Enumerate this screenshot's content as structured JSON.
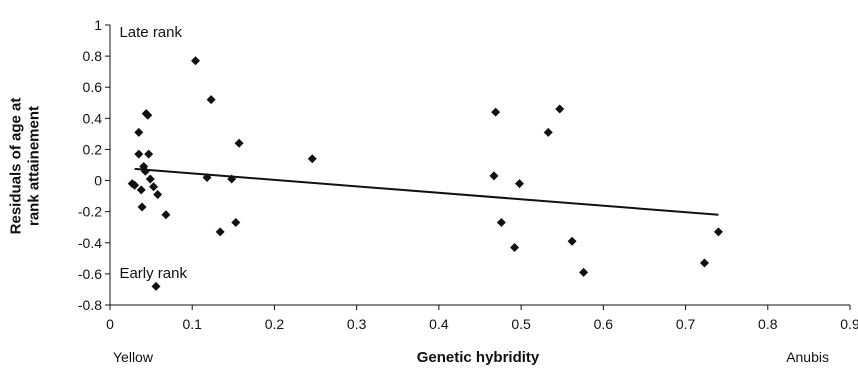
{
  "chart_data": {
    "type": "scatter",
    "title": "",
    "xlabel": "Genetic hybridity",
    "ylabel": "Residuals of age at rank attainement",
    "xlim": [
      0,
      0.9
    ],
    "ylim": [
      -0.8,
      1.0
    ],
    "x_ticks": [
      "0",
      "0.1",
      "0.2",
      "0.3",
      "0.4",
      "0.5",
      "0.6",
      "0.7",
      "0.8",
      "0.9"
    ],
    "y_ticks": [
      "-0.8",
      "-0.6",
      "-0.4",
      "-0.2",
      "0",
      "0.2",
      "0.4",
      "0.6",
      "0.8",
      "1"
    ],
    "x_end_labels": {
      "left": "Yellow",
      "right": "Anubis"
    },
    "annotations": [
      {
        "text": "Late rank",
        "x": 0.003,
        "y": 0.95
      },
      {
        "text": "Early rank",
        "x": 0.003,
        "y": -0.6
      }
    ],
    "grid": false,
    "legend": "none",
    "marker": "diamond",
    "marker_color": "#111111",
    "line_color": "#111111",
    "trendline": {
      "x": [
        0.03,
        0.74
      ],
      "y": [
        0.075,
        -0.22
      ]
    },
    "points": [
      {
        "x": 0.027,
        "y": -0.02
      },
      {
        "x": 0.03,
        "y": -0.03
      },
      {
        "x": 0.035,
        "y": 0.31
      },
      {
        "x": 0.035,
        "y": 0.17
      },
      {
        "x": 0.038,
        "y": -0.06
      },
      {
        "x": 0.039,
        "y": -0.17
      },
      {
        "x": 0.041,
        "y": 0.09
      },
      {
        "x": 0.043,
        "y": 0.06
      },
      {
        "x": 0.044,
        "y": 0.43
      },
      {
        "x": 0.046,
        "y": 0.42
      },
      {
        "x": 0.047,
        "y": 0.17
      },
      {
        "x": 0.049,
        "y": 0.01
      },
      {
        "x": 0.053,
        "y": -0.04
      },
      {
        "x": 0.056,
        "y": -0.68
      },
      {
        "x": 0.058,
        "y": -0.09
      },
      {
        "x": 0.068,
        "y": -0.22
      },
      {
        "x": 0.104,
        "y": 0.77
      },
      {
        "x": 0.118,
        "y": 0.02
      },
      {
        "x": 0.123,
        "y": 0.52
      },
      {
        "x": 0.134,
        "y": -0.33
      },
      {
        "x": 0.148,
        "y": 0.01
      },
      {
        "x": 0.153,
        "y": -0.27
      },
      {
        "x": 0.157,
        "y": 0.24
      },
      {
        "x": 0.246,
        "y": 0.14
      },
      {
        "x": 0.467,
        "y": 0.03
      },
      {
        "x": 0.469,
        "y": 0.44
      },
      {
        "x": 0.476,
        "y": -0.27
      },
      {
        "x": 0.492,
        "y": -0.43
      },
      {
        "x": 0.498,
        "y": -0.02
      },
      {
        "x": 0.533,
        "y": 0.31
      },
      {
        "x": 0.547,
        "y": 0.46
      },
      {
        "x": 0.562,
        "y": -0.39
      },
      {
        "x": 0.576,
        "y": -0.59
      },
      {
        "x": 0.723,
        "y": -0.53
      },
      {
        "x": 0.74,
        "y": -0.33
      }
    ]
  }
}
